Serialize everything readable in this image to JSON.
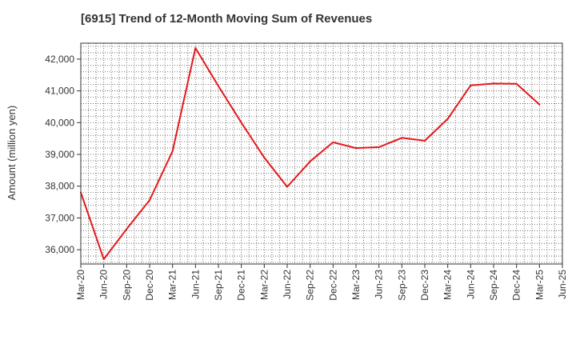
{
  "chart_data": {
    "type": "line",
    "title": "[6915]  Trend of 12-Month Moving Sum of Revenues",
    "xlabel": "",
    "ylabel": "Amount (million yen)",
    "categories": [
      "Mar-20",
      "Jun-20",
      "Sep-20",
      "Dec-20",
      "Mar-21",
      "Jun-21",
      "Sep-21",
      "Dec-21",
      "Mar-22",
      "Jun-22",
      "Sep-22",
      "Dec-22",
      "Mar-23",
      "Jun-23",
      "Sep-23",
      "Dec-23",
      "Mar-24",
      "Jun-24",
      "Sep-24",
      "Dec-24",
      "Mar-25",
      "Jun-25"
    ],
    "y_ticks": [
      36000,
      37000,
      38000,
      39000,
      40000,
      41000,
      42000
    ],
    "y_tick_labels": [
      "36,000",
      "37,000",
      "38,000",
      "39,000",
      "40,000",
      "41,000",
      "42,000"
    ],
    "ylim": [
      35550,
      42500
    ],
    "grid": true,
    "series": [
      {
        "color": "#e31a1c",
        "values": [
          37800,
          35700,
          36650,
          37560,
          39100,
          42350,
          41150,
          40000,
          38900,
          37980,
          38780,
          39380,
          39200,
          39230,
          39520,
          39430,
          40120,
          41170,
          41230,
          41220,
          40570,
          null
        ]
      }
    ]
  }
}
